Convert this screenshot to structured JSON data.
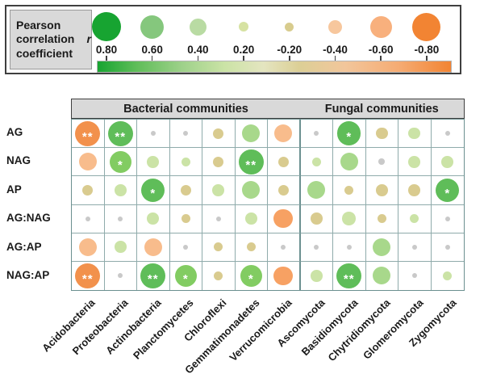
{
  "figure": {
    "legend": {
      "title_text": "Pearson correlation coefficient",
      "title_symbol": "r",
      "points": [
        {
          "label": "0.80",
          "value": 0.8,
          "color": "#17A431",
          "size": 36
        },
        {
          "label": "0.60",
          "value": 0.6,
          "color": "#85C77D",
          "size": 29
        },
        {
          "label": "0.40",
          "value": 0.4,
          "color": "#B9DBA3",
          "size": 21
        },
        {
          "label": "0.20",
          "value": 0.2,
          "color": "#D6E2A2",
          "size": 12
        },
        {
          "label": "-0.20",
          "value": -0.2,
          "color": "#D8CC8E",
          "size": 11
        },
        {
          "label": "-0.40",
          "value": -0.4,
          "color": "#F7C79D",
          "size": 17
        },
        {
          "label": "-0.60",
          "value": -0.6,
          "color": "#F8B07D",
          "size": 27
        },
        {
          "label": "-0.80",
          "value": -0.8,
          "color": "#F28433",
          "size": 35
        }
      ]
    }
  },
  "chart_data": {
    "type": "heatmap",
    "glyph": "sized-colored-circles",
    "value_name": "Pearson correlation coefficient r",
    "value_range": [
      -0.8,
      0.8
    ],
    "rows": [
      "AG",
      "NAG",
      "AP",
      "AG:NAG",
      "AG:AP",
      "NAG:AP"
    ],
    "column_groups": [
      {
        "label": "Bacterial communities",
        "columns": [
          "Acidobacteria",
          "Proteobacteria",
          "Actinobacteria",
          "Planctomycetes",
          "Chloroflexi",
          "Gemmatimonadetes",
          "Verrucomicrobia"
        ]
      },
      {
        "label": "Fungal communities",
        "columns": [
          "Ascomycota",
          "Basidiomycota",
          "Chytridiomycota",
          "Glomeromycota",
          "Zygomycota"
        ]
      }
    ],
    "significance_markers": [
      "*",
      "**"
    ],
    "cells": [
      [
        {
          "r": -0.75,
          "sig": "**"
        },
        {
          "r": 0.75,
          "sig": "**"
        },
        {
          "r": 0.05,
          "sig": ""
        },
        {
          "r": 0.05,
          "sig": ""
        },
        {
          "r": -0.25,
          "sig": ""
        },
        {
          "r": 0.5,
          "sig": ""
        },
        {
          "r": -0.5,
          "sig": ""
        },
        {
          "r": 0.05,
          "sig": ""
        },
        {
          "r": 0.7,
          "sig": "*"
        },
        {
          "r": -0.3,
          "sig": ""
        },
        {
          "r": 0.3,
          "sig": ""
        },
        {
          "r": 0.05,
          "sig": ""
        }
      ],
      [
        {
          "r": -0.5,
          "sig": ""
        },
        {
          "r": 0.65,
          "sig": "*"
        },
        {
          "r": 0.3,
          "sig": ""
        },
        {
          "r": 0.2,
          "sig": ""
        },
        {
          "r": -0.25,
          "sig": ""
        },
        {
          "r": 0.75,
          "sig": "**"
        },
        {
          "r": -0.25,
          "sig": ""
        },
        {
          "r": 0.2,
          "sig": ""
        },
        {
          "r": 0.5,
          "sig": ""
        },
        {
          "r": 0.1,
          "sig": ""
        },
        {
          "r": 0.3,
          "sig": ""
        },
        {
          "r": 0.3,
          "sig": ""
        }
      ],
      [
        {
          "r": -0.25,
          "sig": ""
        },
        {
          "r": 0.3,
          "sig": ""
        },
        {
          "r": 0.7,
          "sig": "*"
        },
        {
          "r": -0.25,
          "sig": ""
        },
        {
          "r": 0.3,
          "sig": ""
        },
        {
          "r": 0.5,
          "sig": ""
        },
        {
          "r": -0.25,
          "sig": ""
        },
        {
          "r": 0.5,
          "sig": ""
        },
        {
          "r": -0.2,
          "sig": ""
        },
        {
          "r": -0.3,
          "sig": ""
        },
        {
          "r": -0.3,
          "sig": ""
        },
        {
          "r": 0.7,
          "sig": "*"
        }
      ],
      [
        {
          "r": 0.05,
          "sig": ""
        },
        {
          "r": 0.05,
          "sig": ""
        },
        {
          "r": 0.3,
          "sig": ""
        },
        {
          "r": -0.2,
          "sig": ""
        },
        {
          "r": 0.05,
          "sig": ""
        },
        {
          "r": 0.3,
          "sig": ""
        },
        {
          "r": -0.55,
          "sig": ""
        },
        {
          "r": -0.3,
          "sig": ""
        },
        {
          "r": 0.35,
          "sig": ""
        },
        {
          "r": -0.2,
          "sig": ""
        },
        {
          "r": 0.2,
          "sig": ""
        },
        {
          "r": 0.05,
          "sig": ""
        }
      ],
      [
        {
          "r": -0.5,
          "sig": ""
        },
        {
          "r": 0.3,
          "sig": ""
        },
        {
          "r": -0.5,
          "sig": ""
        },
        {
          "r": 0.05,
          "sig": ""
        },
        {
          "r": -0.2,
          "sig": ""
        },
        {
          "r": -0.2,
          "sig": ""
        },
        {
          "r": 0.05,
          "sig": ""
        },
        {
          "r": 0.05,
          "sig": ""
        },
        {
          "r": 0.05,
          "sig": ""
        },
        {
          "r": 0.5,
          "sig": ""
        },
        {
          "r": 0.05,
          "sig": ""
        },
        {
          "r": 0.05,
          "sig": ""
        }
      ],
      [
        {
          "r": -0.75,
          "sig": "**"
        },
        {
          "r": 0.05,
          "sig": ""
        },
        {
          "r": 0.75,
          "sig": "**"
        },
        {
          "r": 0.65,
          "sig": "*"
        },
        {
          "r": -0.2,
          "sig": ""
        },
        {
          "r": 0.65,
          "sig": "*"
        },
        {
          "r": -0.55,
          "sig": ""
        },
        {
          "r": 0.3,
          "sig": ""
        },
        {
          "r": 0.75,
          "sig": "**"
        },
        {
          "r": 0.5,
          "sig": ""
        },
        {
          "r": 0.05,
          "sig": ""
        },
        {
          "r": 0.2,
          "sig": ""
        }
      ]
    ]
  },
  "colors": {
    "green_strong": "#5FBD59",
    "green_med": "#82CC62",
    "green_light": "#A8D88B",
    "green_pale": "#CBE3A6",
    "gray": "#C9C9C9",
    "tan": "#D9CB8F",
    "orange_light": "#F8BC8C",
    "orange_med": "#F7A163",
    "orange_strong": "#F2914C",
    "grid_line": "#8FABAB",
    "grid_border": "#6B9090",
    "header_bg": "#D9D9D9",
    "header_border": "#3F3F3F",
    "legend_label_bg": "#D9D9D9",
    "legend_border": "#3F3F3F",
    "text": "#1A1A1A"
  }
}
